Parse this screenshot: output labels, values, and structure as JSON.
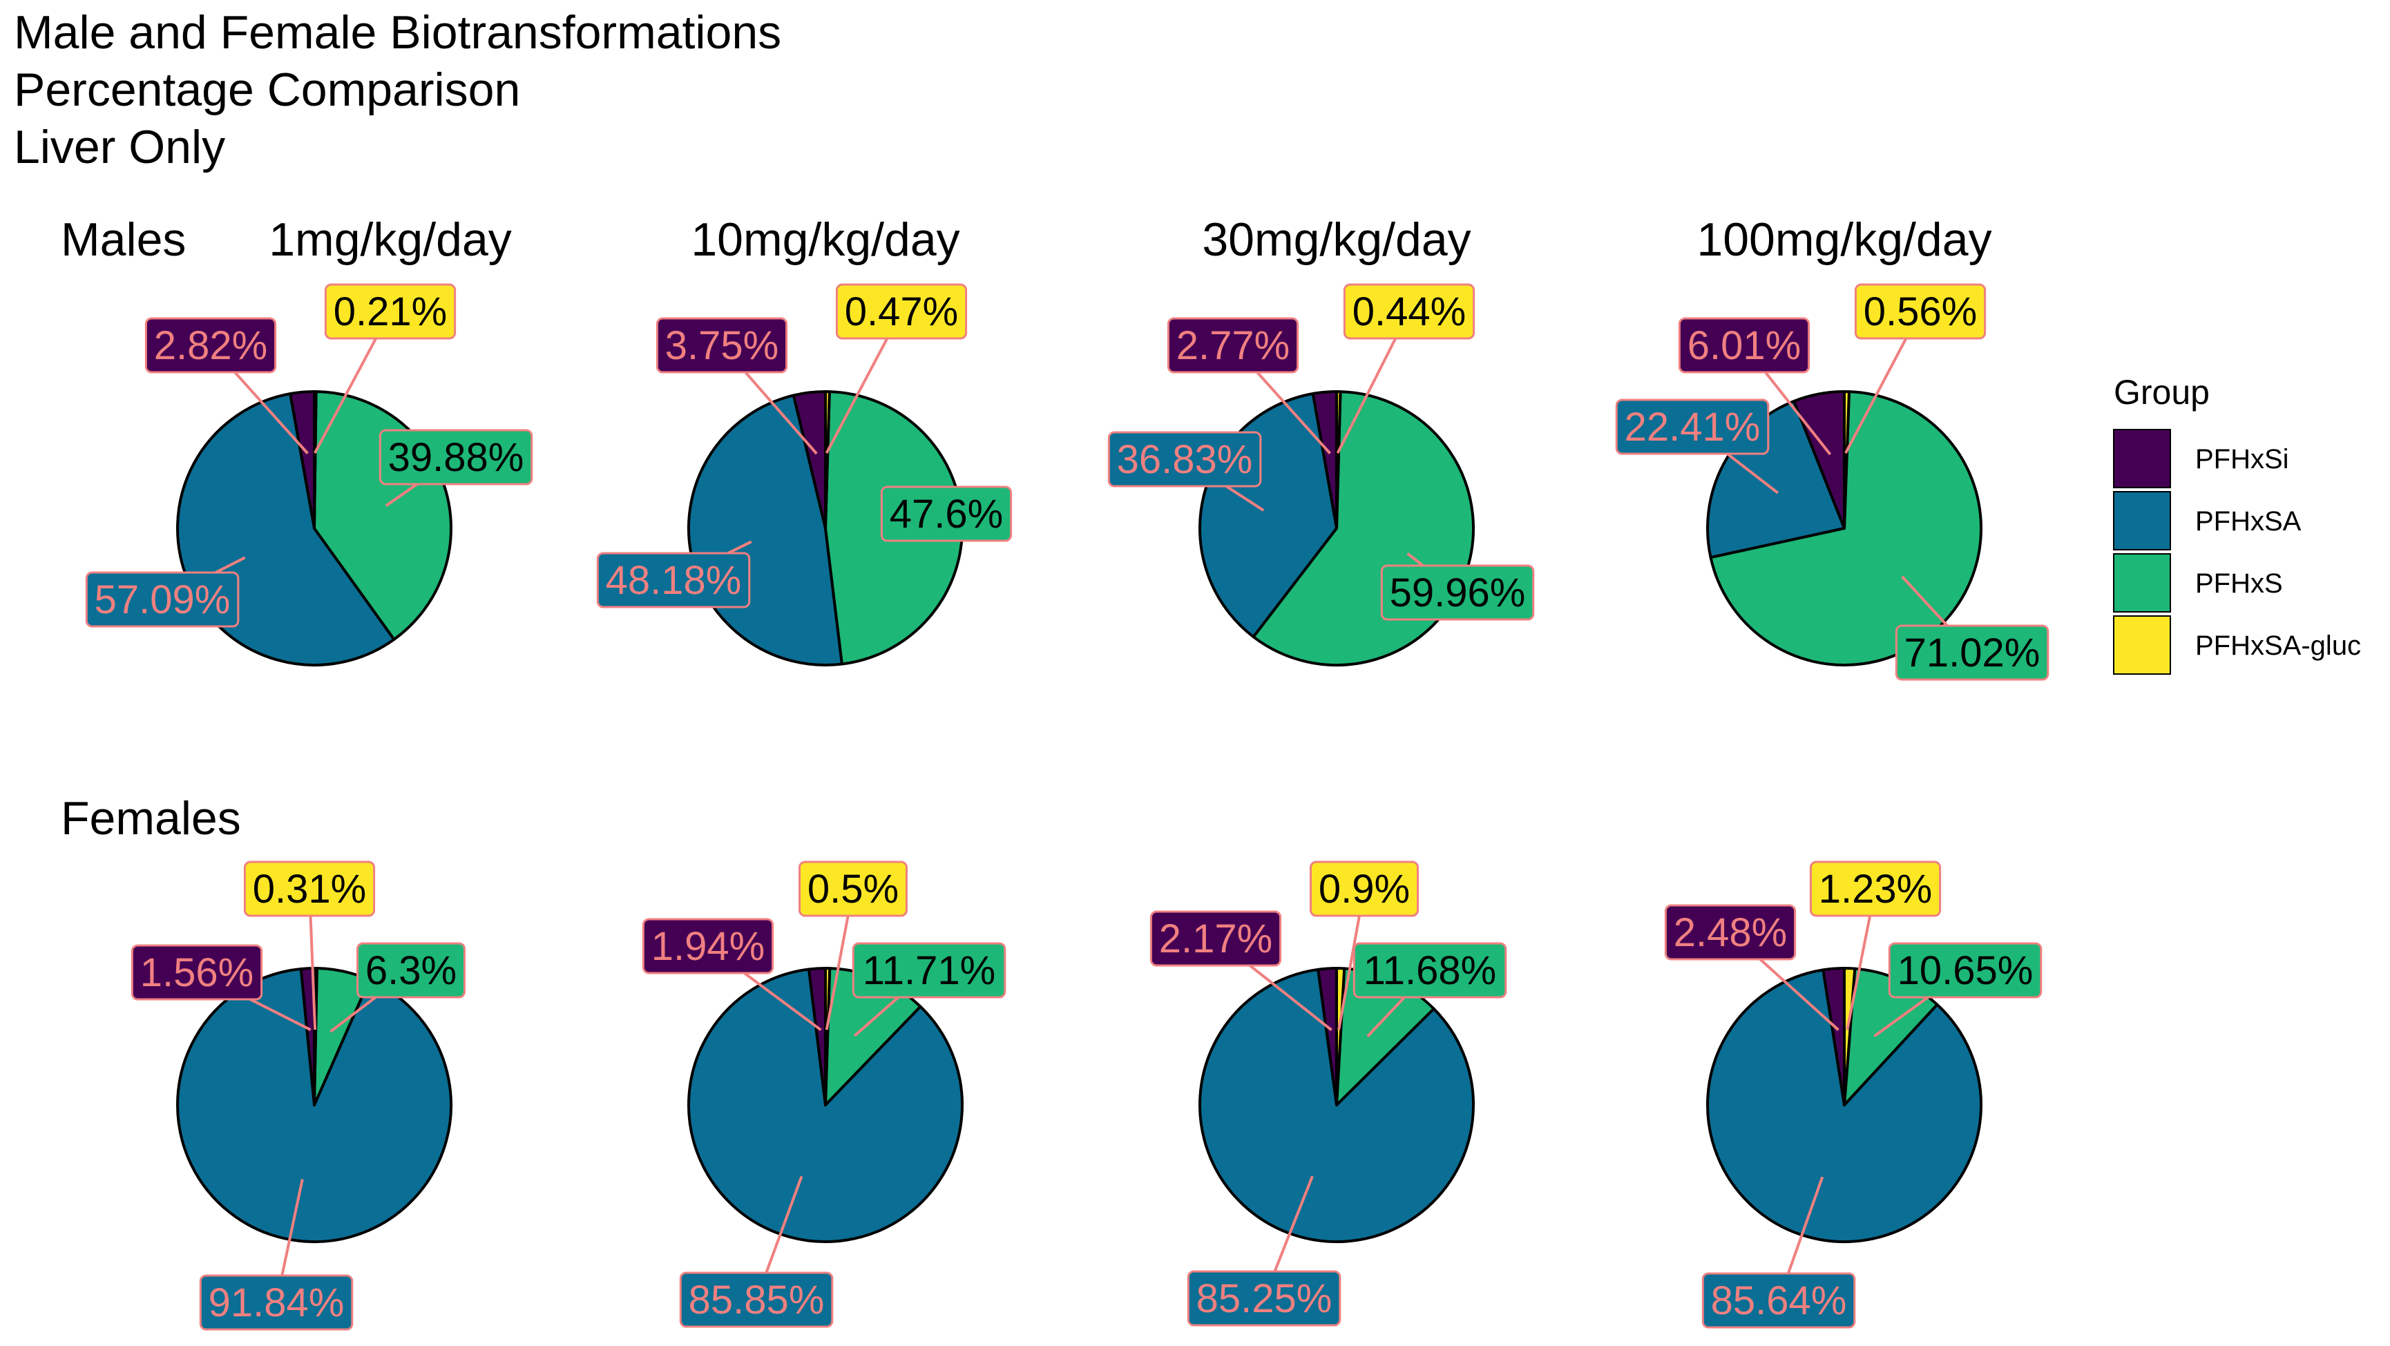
{
  "chart_data": {
    "type": "pie",
    "title_lines": [
      "Male and Female Biotransformations",
      "Percentage Comparison",
      "Liver Only"
    ],
    "row_labels": [
      "Males",
      "Females"
    ],
    "legend": {
      "title": "Group",
      "entries": [
        {
          "name": "PFHxSi",
          "color": "#440154"
        },
        {
          "name": "PFHxSA",
          "color": "#0B6E94"
        },
        {
          "name": "PFHxS",
          "color": "#1DB777"
        },
        {
          "name": "PFHxSA-gluc",
          "color": "#FDE725"
        }
      ]
    },
    "label_text_colors": {
      "PFHxSi": "#F08080",
      "PFHxSA": "#F08080",
      "PFHxS": "#000000",
      "PFHxSA-gluc": "#000000"
    },
    "label_border_color": "#F08080",
    "panels": [
      {
        "group": "Males",
        "dose": "1mg/kg/day",
        "slices": [
          {
            "name": "PFHxSi",
            "value": 2.82,
            "label": "2.82%"
          },
          {
            "name": "PFHxSA",
            "value": 57.09,
            "label": "57.09%"
          },
          {
            "name": "PFHxS",
            "value": 39.88,
            "label": "39.88%"
          },
          {
            "name": "PFHxSA-gluc",
            "value": 0.21,
            "label": "0.21%"
          }
        ]
      },
      {
        "group": "Males",
        "dose": "10mg/kg/day",
        "slices": [
          {
            "name": "PFHxSi",
            "value": 3.75,
            "label": "3.75%"
          },
          {
            "name": "PFHxSA",
            "value": 48.18,
            "label": "48.18%"
          },
          {
            "name": "PFHxS",
            "value": 47.6,
            "label": "47.6%"
          },
          {
            "name": "PFHxSA-gluc",
            "value": 0.47,
            "label": "0.47%"
          }
        ]
      },
      {
        "group": "Males",
        "dose": "30mg/kg/day",
        "slices": [
          {
            "name": "PFHxSi",
            "value": 2.77,
            "label": "2.77%"
          },
          {
            "name": "PFHxSA",
            "value": 36.83,
            "label": "36.83%"
          },
          {
            "name": "PFHxS",
            "value": 59.96,
            "label": "59.96%"
          },
          {
            "name": "PFHxSA-gluc",
            "value": 0.44,
            "label": "0.44%"
          }
        ]
      },
      {
        "group": "Males",
        "dose": "100mg/kg/day",
        "slices": [
          {
            "name": "PFHxSi",
            "value": 6.01,
            "label": "6.01%"
          },
          {
            "name": "PFHxSA",
            "value": 22.41,
            "label": "22.41%"
          },
          {
            "name": "PFHxS",
            "value": 71.02,
            "label": "71.02%"
          },
          {
            "name": "PFHxSA-gluc",
            "value": 0.56,
            "label": "0.56%"
          }
        ]
      },
      {
        "group": "Females",
        "dose": "",
        "slices": [
          {
            "name": "PFHxSi",
            "value": 1.56,
            "label": "1.56%"
          },
          {
            "name": "PFHxSA",
            "value": 91.84,
            "label": "91.84%"
          },
          {
            "name": "PFHxS",
            "value": 6.3,
            "label": "6.3%"
          },
          {
            "name": "PFHxSA-gluc",
            "value": 0.31,
            "label": "0.31%"
          }
        ]
      },
      {
        "group": "Females",
        "dose": "",
        "slices": [
          {
            "name": "PFHxSi",
            "value": 1.94,
            "label": "1.94%"
          },
          {
            "name": "PFHxSA",
            "value": 85.85,
            "label": "85.85%"
          },
          {
            "name": "PFHxS",
            "value": 11.71,
            "label": "11.71%"
          },
          {
            "name": "PFHxSA-gluc",
            "value": 0.5,
            "label": "0.5%"
          }
        ]
      },
      {
        "group": "Females",
        "dose": "",
        "slices": [
          {
            "name": "PFHxSi",
            "value": 2.17,
            "label": "2.17%"
          },
          {
            "name": "PFHxSA",
            "value": 85.25,
            "label": "85.25%"
          },
          {
            "name": "PFHxS",
            "value": 11.68,
            "label": "11.68%"
          },
          {
            "name": "PFHxSA-gluc",
            "value": 0.9,
            "label": "0.9%"
          }
        ]
      },
      {
        "group": "Females",
        "dose": "",
        "slices": [
          {
            "name": "PFHxSi",
            "value": 2.48,
            "label": "2.48%"
          },
          {
            "name": "PFHxSA",
            "value": 85.64,
            "label": "85.64%"
          },
          {
            "name": "PFHxS",
            "value": 10.65,
            "label": "10.65%"
          },
          {
            "name": "PFHxSA-gluc",
            "value": 1.23,
            "label": "1.23%"
          }
        ]
      }
    ]
  }
}
